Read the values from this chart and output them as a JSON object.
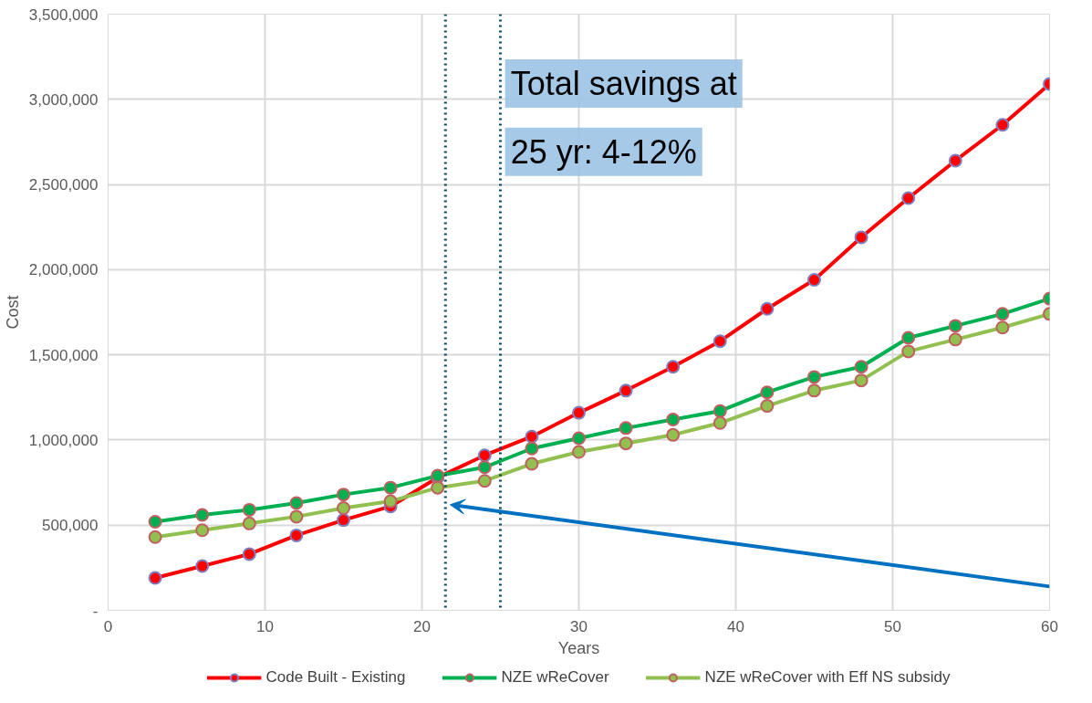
{
  "chart_data": {
    "type": "line",
    "xlabel": "Years",
    "ylabel": "Cost",
    "x": [
      3,
      6,
      9,
      12,
      15,
      18,
      21,
      24,
      27,
      30,
      33,
      36,
      39,
      42,
      45,
      48,
      51,
      54,
      57,
      60
    ],
    "series": [
      {
        "name": "Code Built - Existing",
        "color": "#ff0000",
        "values": [
          190000,
          260000,
          330000,
          440000,
          530000,
          610000,
          780000,
          910000,
          1020000,
          1160000,
          1290000,
          1430000,
          1580000,
          1770000,
          1940000,
          2190000,
          2420000,
          2640000,
          2850000,
          3090000
        ]
      },
      {
        "name": "NZE wReCover",
        "color": "#00b050",
        "values": [
          520000,
          560000,
          590000,
          630000,
          680000,
          720000,
          790000,
          840000,
          950000,
          1010000,
          1070000,
          1120000,
          1170000,
          1280000,
          1370000,
          1430000,
          1600000,
          1670000,
          1740000,
          1830000
        ]
      },
      {
        "name": "NZE wReCover with Eff NS subsidy",
        "color": "#92c050",
        "values": [
          430000,
          470000,
          510000,
          550000,
          600000,
          640000,
          720000,
          760000,
          860000,
          930000,
          980000,
          1030000,
          1100000,
          1200000,
          1290000,
          1350000,
          1520000,
          1590000,
          1660000,
          1740000
        ]
      }
    ],
    "xlim": [
      0,
      60
    ],
    "xticks": [
      0,
      10,
      20,
      30,
      40,
      50,
      60
    ],
    "ylim": [
      0,
      3500000
    ],
    "yticks": [
      {
        "value": 0,
        "label": "-"
      },
      {
        "value": 500000,
        "label": "500,000"
      },
      {
        "value": 1000000,
        "label": "1,000,000"
      },
      {
        "value": 1500000,
        "label": "1,500,000"
      },
      {
        "value": 2000000,
        "label": "2,000,000"
      },
      {
        "value": 2500000,
        "label": "2,500,000"
      },
      {
        "value": 3000000,
        "label": "3,000,000"
      },
      {
        "value": 3500000,
        "label": "3,500,000"
      }
    ],
    "ref_lines": [
      {
        "axis": "x",
        "value": 21.5,
        "line_style": "dotted",
        "color": "#0b4a5e"
      },
      {
        "axis": "x",
        "value": 25,
        "line_style": "dotted",
        "color": "#0b4a5e"
      }
    ],
    "annotations": [
      "Total savings at 25 yr: 4-12%"
    ],
    "grid": true,
    "legend": "bottom",
    "marker": "circle",
    "line_style": "solid"
  }
}
